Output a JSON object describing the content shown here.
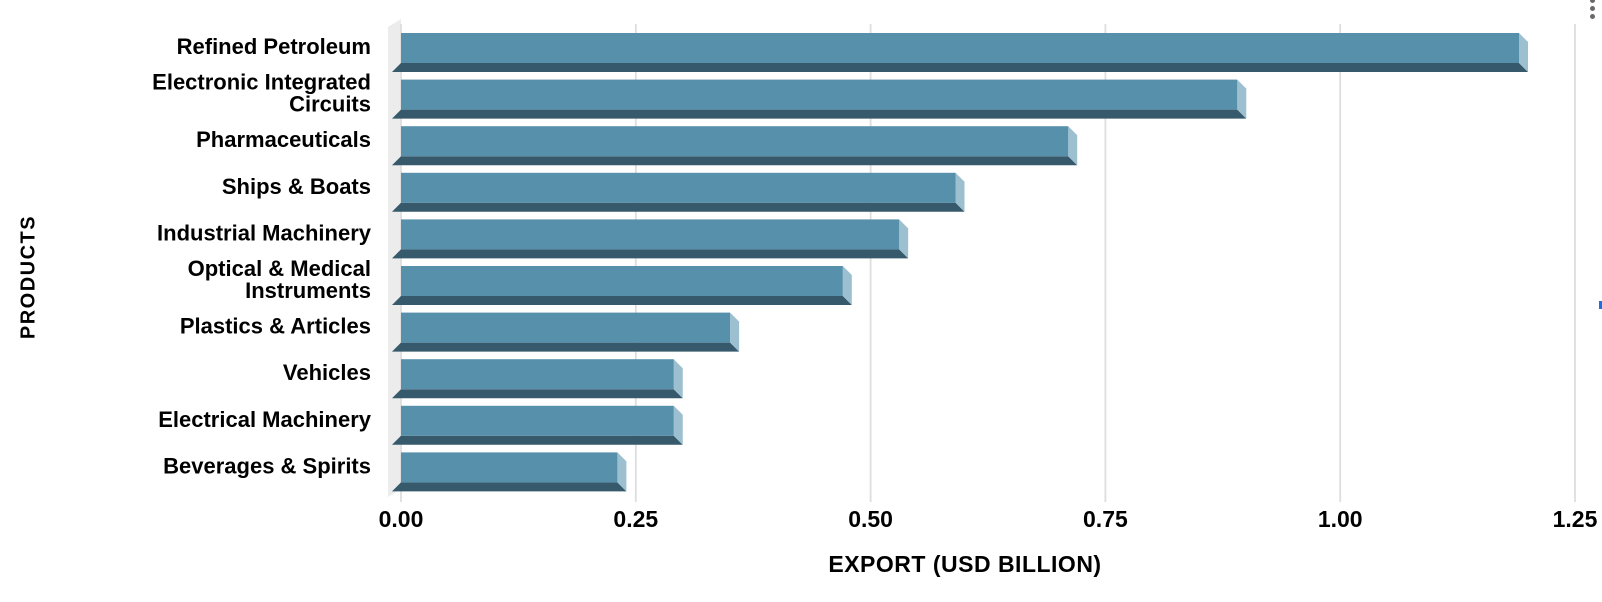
{
  "chart_data": {
    "type": "bar",
    "orientation": "horizontal",
    "categories": [
      "Refined Petroleum",
      "Electronic Integrated Circuits",
      "Pharmaceuticals",
      "Ships & Boats",
      "Industrial Machinery",
      "Optical & Medical Instruments",
      "Plastics & Articles",
      "Vehicles",
      "Electrical Machinery",
      "Beverages & Spirits"
    ],
    "label_lines": [
      [
        "Refined Petroleum"
      ],
      [
        "Electronic Integrated",
        "Circuits"
      ],
      [
        "Pharmaceuticals"
      ],
      [
        "Ships & Boats"
      ],
      [
        "Industrial Machinery"
      ],
      [
        "Optical & Medical",
        "Instruments"
      ],
      [
        "Plastics & Articles"
      ],
      [
        "Vehicles"
      ],
      [
        "Electrical Machinery"
      ],
      [
        "Beverages & Spirits"
      ]
    ],
    "values": [
      1.2,
      0.9,
      0.72,
      0.6,
      0.54,
      0.48,
      0.36,
      0.3,
      0.3,
      0.24
    ],
    "xlabel": "EXPORT (USD BILLION)",
    "ylabel": "PRODUCTS",
    "xlim": [
      0,
      1.25
    ],
    "xticks": [
      0,
      0.25,
      0.5,
      0.75,
      1,
      1.25
    ],
    "xtick_labels": [
      "0.00",
      "0.25",
      "0.50",
      "0.75",
      "1.00",
      "1.25"
    ],
    "grid": true,
    "legend": "none",
    "style": "3d-bevel-bars",
    "bar_color": "#5690ab",
    "bar_cap_color": "#9dc0d0",
    "bar_shadow_color": "#36596b",
    "wall_color": "#ececec",
    "gridline_color": "#dedede",
    "text_color": "#000000"
  },
  "menu": {
    "icon": "more-options-kebab",
    "color": "#6a6a6a"
  },
  "edge_marker": {
    "color": "#1a6fe8"
  }
}
